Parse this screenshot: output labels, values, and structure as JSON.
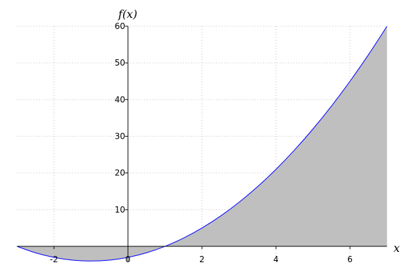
{
  "chart_data": {
    "type": "area",
    "xlabel": "x",
    "ylabel": "f(x)",
    "xlim": [
      -3,
      7
    ],
    "ylim": [
      -4,
      60
    ],
    "grid": true,
    "x_ticks": [
      -2,
      0,
      2,
      4,
      6
    ],
    "x_tick_labels": [
      "-2",
      "0",
      "2",
      "4",
      "6"
    ],
    "y_ticks": [
      10,
      20,
      30,
      40,
      50,
      60
    ],
    "y_tick_labels": [
      "10",
      "20",
      "30",
      "40",
      "50",
      "60"
    ],
    "series": [
      {
        "x": [
          -3,
          -2.5,
          -2,
          -1.5,
          -1,
          -0.5,
          0,
          0.5,
          1,
          1.5,
          2,
          2.5,
          3,
          3.5,
          4,
          4.5,
          5,
          5.5,
          6,
          6.5,
          7
        ],
        "y": [
          0,
          -1.75,
          -3,
          -3.75,
          -4,
          -3.75,
          -3,
          -1.75,
          0,
          2.25,
          5,
          8.25,
          12,
          16.25,
          21,
          26.25,
          32,
          38.25,
          45,
          52.25,
          60
        ]
      }
    ],
    "colors": {
      "line": "#0000ff",
      "fill": "#bfbfbf",
      "grid": "#bbbbbb"
    }
  }
}
